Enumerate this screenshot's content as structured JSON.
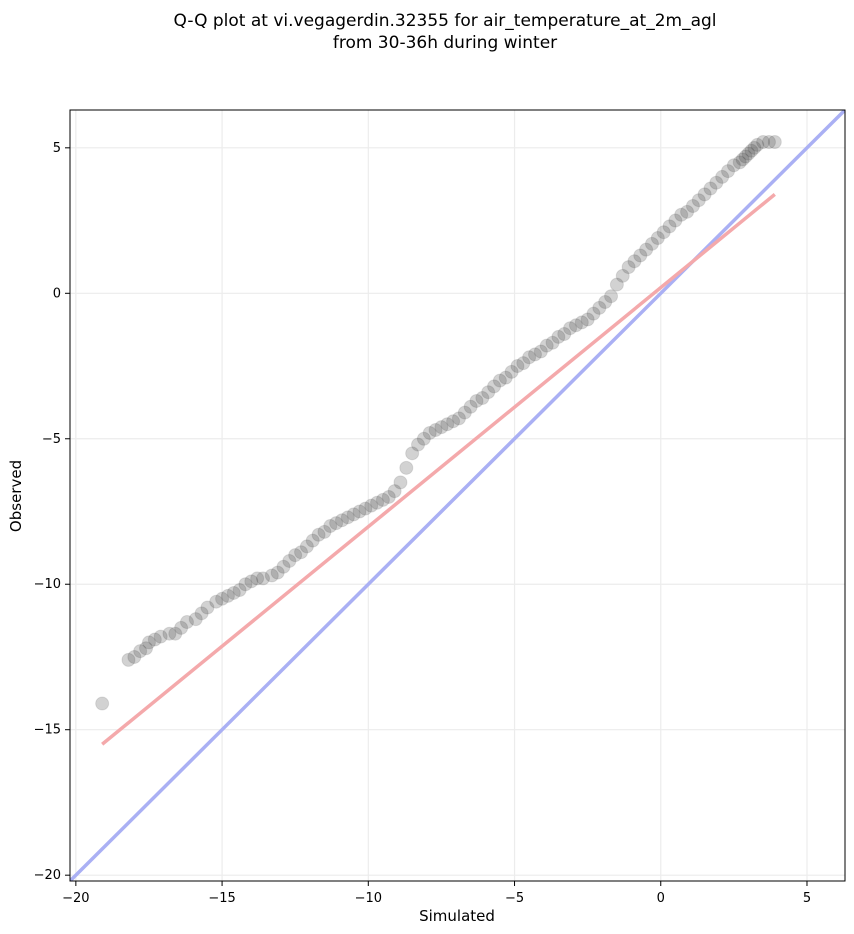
{
  "chart_data": {
    "type": "scatter",
    "title_lines": [
      "Q-Q plot at vi.vegagerdin.32355 for air_temperature_at_2m_agl",
      "from 30-36h during winter"
    ],
    "xlabel": "Simulated",
    "ylabel": "Observed",
    "xlim": [
      -20.2,
      6.3
    ],
    "ylim": [
      -20.2,
      6.3
    ],
    "xticks": [
      -20,
      -15,
      -10,
      -5,
      0,
      5
    ],
    "yticks": [
      -20,
      -15,
      -10,
      -5,
      0,
      5
    ],
    "xtick_labels": [
      "−20",
      "−15",
      "−10",
      "−5",
      "0",
      "5"
    ],
    "ytick_labels": [
      "−20",
      "−15",
      "−10",
      "−5",
      "0",
      "5"
    ],
    "grid": true,
    "colors": {
      "points": "#333333",
      "identity_line": "#aab0f4",
      "fit_line": "#f4a9ab",
      "grid": "#ececec",
      "axes": "#000000"
    },
    "series": [
      {
        "kind": "quantiles",
        "x": [
          -19.1,
          -18.2,
          -18.0,
          -17.8,
          -17.6,
          -17.5,
          -17.3,
          -17.1,
          -16.8,
          -16.6,
          -16.4,
          -16.2,
          -15.9,
          -15.7,
          -15.5,
          -15.2,
          -15.0,
          -14.8,
          -14.6,
          -14.4,
          -14.2,
          -14.0,
          -13.8,
          -13.6,
          -13.3,
          -13.1,
          -12.9,
          -12.7,
          -12.5,
          -12.3,
          -12.1,
          -11.9,
          -11.7,
          -11.5,
          -11.3,
          -11.1,
          -10.9,
          -10.7,
          -10.5,
          -10.3,
          -10.1,
          -9.9,
          -9.7,
          -9.5,
          -9.3,
          -9.1,
          -8.9,
          -8.7,
          -8.5,
          -8.3,
          -8.1,
          -7.9,
          -7.7,
          -7.5,
          -7.3,
          -7.1,
          -6.9,
          -6.7,
          -6.5,
          -6.3,
          -6.1,
          -5.9,
          -5.7,
          -5.5,
          -5.3,
          -5.1,
          -4.9,
          -4.7,
          -4.5,
          -4.3,
          -4.1,
          -3.9,
          -3.7,
          -3.5,
          -3.3,
          -3.1,
          -2.9,
          -2.7,
          -2.5,
          -2.3,
          -2.1,
          -1.9,
          -1.7,
          -1.5,
          -1.3,
          -1.1,
          -0.9,
          -0.7,
          -0.5,
          -0.3,
          -0.1,
          0.1,
          0.3,
          0.5,
          0.7,
          0.9,
          1.1,
          1.3,
          1.5,
          1.7,
          1.9,
          2.1,
          2.3,
          2.5,
          2.7,
          2.8,
          2.9,
          3.0,
          3.1,
          3.2,
          3.3,
          3.5,
          3.7,
          3.9
        ],
        "y": [
          -14.1,
          -12.6,
          -12.5,
          -12.3,
          -12.2,
          -12.0,
          -11.9,
          -11.8,
          -11.7,
          -11.7,
          -11.5,
          -11.3,
          -11.2,
          -11.0,
          -10.8,
          -10.6,
          -10.5,
          -10.4,
          -10.3,
          -10.2,
          -10.0,
          -9.9,
          -9.8,
          -9.8,
          -9.7,
          -9.6,
          -9.4,
          -9.2,
          -9.0,
          -8.9,
          -8.7,
          -8.5,
          -8.3,
          -8.2,
          -8.0,
          -7.9,
          -7.8,
          -7.7,
          -7.6,
          -7.5,
          -7.4,
          -7.3,
          -7.2,
          -7.1,
          -7.0,
          -6.8,
          -6.5,
          -6.0,
          -5.5,
          -5.2,
          -5.0,
          -4.8,
          -4.7,
          -4.6,
          -4.5,
          -4.4,
          -4.3,
          -4.1,
          -3.9,
          -3.7,
          -3.6,
          -3.4,
          -3.2,
          -3.0,
          -2.9,
          -2.7,
          -2.5,
          -2.4,
          -2.2,
          -2.1,
          -2.0,
          -1.8,
          -1.7,
          -1.5,
          -1.4,
          -1.2,
          -1.1,
          -1.0,
          -0.9,
          -0.7,
          -0.5,
          -0.3,
          -0.1,
          0.3,
          0.6,
          0.9,
          1.1,
          1.3,
          1.5,
          1.7,
          1.9,
          2.1,
          2.3,
          2.5,
          2.7,
          2.8,
          3.0,
          3.2,
          3.4,
          3.6,
          3.8,
          4.0,
          4.2,
          4.4,
          4.5,
          4.6,
          4.7,
          4.8,
          4.9,
          5.0,
          5.1,
          5.2,
          5.2,
          5.2
        ]
      },
      {
        "kind": "identity",
        "x": [
          -20.2,
          6.3
        ],
        "y": [
          -20.2,
          6.3
        ]
      },
      {
        "kind": "fit",
        "x": [
          -19.1,
          3.9
        ],
        "y": [
          -15.5,
          3.4
        ]
      }
    ]
  }
}
